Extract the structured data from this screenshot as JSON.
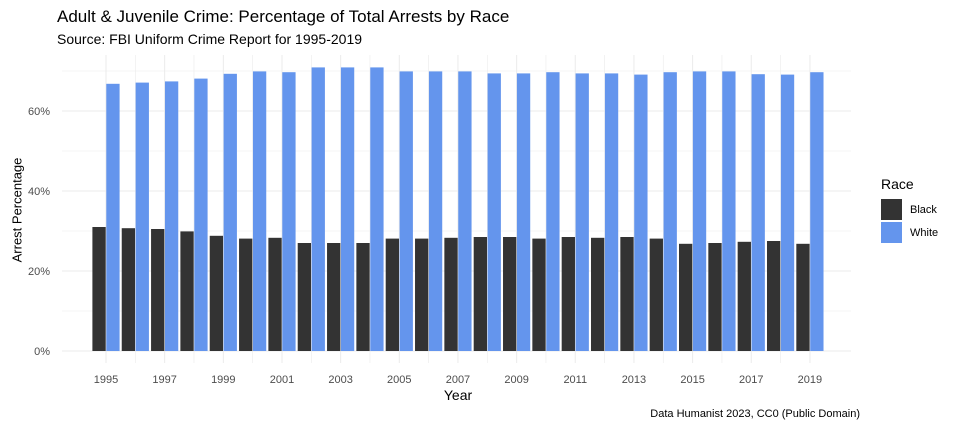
{
  "title": "Adult & Juvenile Crime: Percentage of Total Arrests by Race",
  "subtitle": "Source: FBI Uniform Crime Report for 1995-2019",
  "caption": "Data Humanist 2023, CC0 (Public Domain)",
  "legend": {
    "title": "Race",
    "items": [
      {
        "label": "Black",
        "color": "#333333"
      },
      {
        "label": "White",
        "color": "#6495ED"
      }
    ]
  },
  "chart_data": {
    "type": "bar",
    "title": "Adult & Juvenile Crime: Percentage of Total Arrests by Race",
    "xlabel": "Year",
    "ylabel": "Arrest Percentage",
    "ylim": [
      0,
      72
    ],
    "y_ticks": [
      0,
      20,
      40,
      60
    ],
    "y_tick_labels": [
      "0%",
      "20%",
      "40%",
      "60%"
    ],
    "x_tick_labels": [
      "1995",
      "1997",
      "1999",
      "2001",
      "2003",
      "2005",
      "2007",
      "2009",
      "2011",
      "2013",
      "2015",
      "2017",
      "2019"
    ],
    "grid": true,
    "legend_position": "right",
    "categories": [
      1995,
      1996,
      1997,
      1998,
      1999,
      2000,
      2001,
      2002,
      2003,
      2004,
      2005,
      2006,
      2007,
      2008,
      2009,
      2010,
      2011,
      2012,
      2013,
      2014,
      2015,
      2016,
      2017,
      2018,
      2019
    ],
    "series": [
      {
        "name": "Black",
        "color": "#333333",
        "values": [
          31.0,
          30.7,
          30.5,
          29.9,
          28.8,
          28.1,
          28.3,
          27.0,
          27.0,
          27.0,
          28.1,
          28.1,
          28.3,
          28.5,
          28.5,
          28.1,
          28.5,
          28.3,
          28.5,
          28.1,
          26.8,
          27.0,
          27.3,
          27.5,
          26.8
        ]
      },
      {
        "name": "White",
        "color": "#6495ED",
        "values": [
          66.8,
          67.1,
          67.4,
          68.1,
          69.3,
          69.9,
          69.7,
          70.9,
          70.9,
          70.9,
          69.9,
          69.9,
          69.9,
          69.4,
          69.4,
          69.7,
          69.4,
          69.4,
          69.1,
          69.7,
          69.9,
          69.9,
          69.2,
          69.1,
          69.7
        ]
      }
    ]
  }
}
